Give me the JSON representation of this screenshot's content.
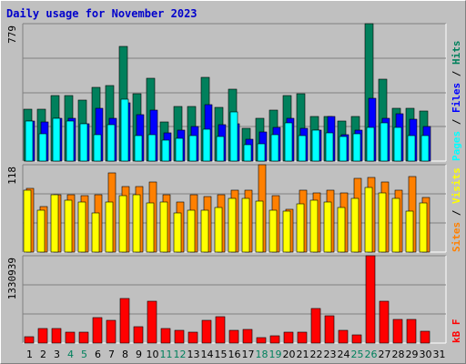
{
  "title": "Daily usage for November 2023",
  "colors": {
    "background": "#c0c0c0",
    "title": "#0000cc",
    "hits": "#00805c",
    "files": "#0000ff",
    "pages": "#00ffff",
    "visits": "#ffff00",
    "sites": "#ff8000",
    "kbytes": "#ff0000",
    "weekend_label": "#00805c",
    "gridline": "#808080"
  },
  "chart_data": [
    {
      "type": "bar",
      "panel": "hits-files-pages",
      "max_label": "779",
      "legend": [
        "Pages",
        "Files",
        "Hits"
      ],
      "ylim": [
        0,
        779
      ],
      "categories": [
        "1",
        "2",
        "3",
        "4",
        "5",
        "6",
        "7",
        "8",
        "9",
        "10",
        "11",
        "12",
        "13",
        "14",
        "15",
        "16",
        "17",
        "18",
        "19",
        "20",
        "21",
        "22",
        "23",
        "24",
        "25",
        "26",
        "27",
        "28",
        "29",
        "30"
      ],
      "series": [
        {
          "name": "Hits",
          "values": [
            296,
            296,
            372,
            372,
            347,
            420,
            430,
            650,
            380,
            467,
            220,
            310,
            310,
            475,
            305,
            410,
            185,
            245,
            290,
            372,
            380,
            255,
            255,
            225,
            255,
            779,
            465,
            300,
            300,
            285
          ]
        },
        {
          "name": "Files",
          "values": [
            225,
            220,
            245,
            240,
            210,
            300,
            245,
            330,
            265,
            290,
            160,
            175,
            195,
            320,
            205,
            210,
            125,
            165,
            190,
            245,
            185,
            175,
            255,
            150,
            175,
            355,
            240,
            270,
            235,
            195
          ]
        },
        {
          "name": "Pages",
          "values": [
            225,
            155,
            240,
            225,
            210,
            150,
            205,
            350,
            145,
            150,
            120,
            130,
            145,
            180,
            140,
            280,
            95,
            100,
            150,
            215,
            145,
            175,
            160,
            140,
            155,
            190,
            215,
            190,
            145,
            145
          ]
        }
      ]
    },
    {
      "type": "bar",
      "panel": "visits-sites",
      "max_label": "118",
      "legend": [
        "Sites",
        "Visits"
      ],
      "ylim": [
        0,
        118
      ],
      "categories": [
        "1",
        "2",
        "3",
        "4",
        "5",
        "6",
        "7",
        "8",
        "9",
        "10",
        "11",
        "12",
        "13",
        "14",
        "15",
        "16",
        "17",
        "18",
        "19",
        "20",
        "21",
        "22",
        "23",
        "24",
        "25",
        "26",
        "27",
        "28",
        "29",
        "30"
      ],
      "series": [
        {
          "name": "Visits",
          "values": [
            84,
            56,
            77,
            70,
            68,
            53,
            68,
            76,
            77,
            66,
            68,
            53,
            57,
            56,
            60,
            73,
            73,
            69,
            56,
            55,
            65,
            70,
            68,
            60,
            72,
            87,
            80,
            72,
            55,
            66
          ]
        },
        {
          "name": "Sites",
          "values": [
            86,
            62,
            78,
            77,
            76,
            77,
            107,
            88,
            88,
            95,
            77,
            67,
            77,
            75,
            78,
            83,
            83,
            118,
            76,
            58,
            83,
            80,
            84,
            80,
            100,
            101,
            95,
            84,
            102,
            74
          ]
        }
      ]
    },
    {
      "type": "bar",
      "panel": "kbytes",
      "max_label": "1330939",
      "legend": [
        "kB F"
      ],
      "ylim": [
        0,
        1330939
      ],
      "categories": [
        "1",
        "2",
        "3",
        "4",
        "5",
        "6",
        "7",
        "8",
        "9",
        "10",
        "11",
        "12",
        "13",
        "14",
        "15",
        "16",
        "17",
        "18",
        "19",
        "20",
        "21",
        "22",
        "23",
        "24",
        "25",
        "26",
        "27",
        "28",
        "29",
        "30"
      ],
      "series": [
        {
          "name": "kB F",
          "values": [
            100000,
            220000,
            215000,
            170000,
            160000,
            395000,
            350000,
            680000,
            250000,
            640000,
            215000,
            190000,
            165000,
            340000,
            400000,
            200000,
            205000,
            85000,
            110000,
            165000,
            160000,
            520000,
            410000,
            195000,
            130000,
            1330939,
            640000,
            360000,
            360000,
            175000
          ]
        }
      ]
    }
  ],
  "x_axis": {
    "labels": [
      "1",
      "2",
      "3",
      "4",
      "5",
      "6",
      "7",
      "8",
      "9",
      "10",
      "11",
      "12",
      "13",
      "14",
      "15",
      "16",
      "17",
      "18",
      "19",
      "20",
      "21",
      "22",
      "23",
      "24",
      "25",
      "26",
      "27",
      "28",
      "29",
      "30",
      "31"
    ],
    "weekend_days": [
      4,
      5,
      11,
      12,
      18,
      19,
      25,
      26
    ]
  }
}
